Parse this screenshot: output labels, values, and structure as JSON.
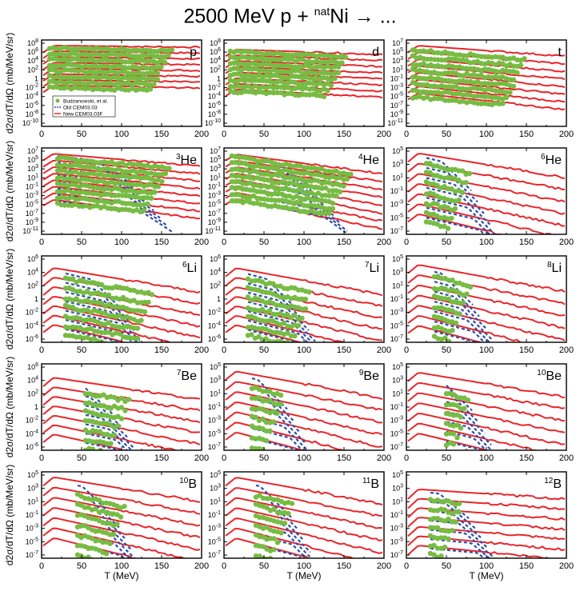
{
  "title": {
    "prefix": "2500 MeV p + ",
    "sup": "nat",
    "target": "Ni",
    "suffix": " → ..."
  },
  "colors": {
    "new_model": "#e8262b",
    "old_model": "#2f4faa",
    "data": "#77bc43",
    "axis": "#000000"
  },
  "axes": {
    "xlabel": "T (MeV)",
    "ylabel": "d2σ/dT/dΩ (mb/MeV/sr)",
    "ylabel_sup": "2",
    "xlim": [
      0,
      200
    ],
    "xticks": [
      "0",
      "50",
      "100",
      "150",
      "200"
    ],
    "ylog": true
  },
  "legend": {
    "panel": "p",
    "placement": "lower-left",
    "entries": [
      {
        "label": "Budzanowski, et al.",
        "kind": "data"
      },
      {
        "label": "Old CEM03.03",
        "kind": "old_model"
      },
      {
        "label": "New CEM03.03F",
        "kind": "new_model"
      }
    ]
  },
  "chart_data": [
    {
      "type": "line",
      "panel": "p",
      "label": "p",
      "label_sup": "",
      "ylim_exp": [
        -11,
        8
      ],
      "yticks": [
        {
          "b": "10",
          "e": "8"
        },
        {
          "b": "10",
          "e": "6"
        },
        {
          "b": "10",
          "e": "4"
        },
        {
          "b": "10",
          "e": "2"
        },
        {
          "b": "1",
          "e": ""
        },
        {
          "b": "10",
          "e": "-2"
        },
        {
          "b": "10",
          "e": "-4"
        },
        {
          "b": "10",
          "e": "-6"
        },
        {
          "b": "10",
          "e": "-8"
        },
        {
          "b": "10",
          "e": "-10"
        }
      ],
      "curves": 8,
      "new_peak": 6.8,
      "new_slope": 0.002,
      "new_spacing": 1.25,
      "old_dash": false,
      "data_x": [
        10,
        165
      ],
      "data_peak": 6.3,
      "data_slope": 0.004
    },
    {
      "type": "line",
      "panel": "d",
      "label": "d",
      "label_sup": "",
      "ylim_exp": [
        -11,
        8
      ],
      "yticks": [
        {
          "b": "10",
          "e": "8"
        },
        {
          "b": "10",
          "e": "6"
        },
        {
          "b": "10",
          "e": "4"
        },
        {
          "b": "10",
          "e": "2"
        },
        {
          "b": "1",
          "e": ""
        },
        {
          "b": "10",
          "e": "-2"
        },
        {
          "b": "10",
          "e": "-4"
        },
        {
          "b": "10",
          "e": "-6"
        },
        {
          "b": "10",
          "e": "-8"
        },
        {
          "b": "10",
          "e": "-10"
        }
      ],
      "curves": 8,
      "new_peak": 6.0,
      "new_slope": 0.006,
      "new_spacing": 1.25,
      "old_dash": false,
      "data_x": [
        8,
        155
      ],
      "data_peak": 5.5,
      "data_slope": 0.008
    },
    {
      "type": "line",
      "panel": "t",
      "label": "t",
      "label_sup": "",
      "ylim_exp": [
        -11,
        7
      ],
      "yticks": [
        {
          "b": "10",
          "e": "7"
        },
        {
          "b": "10",
          "e": "5"
        },
        {
          "b": "10",
          "e": "3"
        },
        {
          "b": "10",
          "e": "1"
        },
        {
          "b": "10",
          "e": "-1"
        },
        {
          "b": "10",
          "e": "-3"
        },
        {
          "b": "10",
          "e": "-5"
        },
        {
          "b": "10",
          "e": "-7"
        },
        {
          "b": "10",
          "e": "-9"
        },
        {
          "b": "10",
          "e": "-11"
        }
      ],
      "curves": 8,
      "new_peak": 6.0,
      "new_slope": 0.012,
      "new_spacing": 1.4,
      "old_dash": false,
      "data_x": [
        8,
        150
      ],
      "data_peak": 5.0,
      "data_slope": 0.014
    },
    {
      "type": "line",
      "panel": "3He",
      "label": "He",
      "label_sup": "3",
      "ylim_exp": [
        -11,
        7
      ],
      "yticks": [
        {
          "b": "10",
          "e": "7"
        },
        {
          "b": "10",
          "e": "5"
        },
        {
          "b": "10",
          "e": "3"
        },
        {
          "b": "10",
          "e": "1"
        },
        {
          "b": "10",
          "e": "-1"
        },
        {
          "b": "10",
          "e": "-3"
        },
        {
          "b": "10",
          "e": "-5"
        },
        {
          "b": "10",
          "e": "-7"
        },
        {
          "b": "10",
          "e": "-9"
        },
        {
          "b": "10",
          "e": "-11"
        }
      ],
      "curves": 8,
      "new_peak": 6.0,
      "new_slope": 0.014,
      "new_spacing": 1.35,
      "old_dash": true,
      "data_x": [
        20,
        160
      ],
      "data_peak": 5.2,
      "data_slope": 0.015
    },
    {
      "type": "line",
      "panel": "4He",
      "label": "He",
      "label_sup": "4",
      "ylim_exp": [
        -11,
        7
      ],
      "yticks": [
        {
          "b": "10",
          "e": "7"
        },
        {
          "b": "10",
          "e": "5"
        },
        {
          "b": "10",
          "e": "3"
        },
        {
          "b": "10",
          "e": "1"
        },
        {
          "b": "10",
          "e": "-1"
        },
        {
          "b": "10",
          "e": "-3"
        },
        {
          "b": "10",
          "e": "-5"
        },
        {
          "b": "10",
          "e": "-7"
        },
        {
          "b": "10",
          "e": "-9"
        },
        {
          "b": "10",
          "e": "-11"
        }
      ],
      "curves": 8,
      "new_peak": 6.0,
      "new_slope": 0.022,
      "new_spacing": 1.3,
      "old_dash": true,
      "data_x": [
        10,
        160
      ],
      "data_peak": 5.5,
      "data_slope": 0.025
    },
    {
      "type": "line",
      "panel": "6He",
      "label": "He",
      "label_sup": "6",
      "ylim_exp": [
        -8,
        5
      ],
      "yticks": [
        {
          "b": "10",
          "e": "5"
        },
        {
          "b": "10",
          "e": "3"
        },
        {
          "b": "10",
          "e": "1"
        },
        {
          "b": "10",
          "e": "-1"
        },
        {
          "b": "10",
          "e": "-3"
        },
        {
          "b": "10",
          "e": "-5"
        },
        {
          "b": "10",
          "e": "-7"
        }
      ],
      "curves": 7,
      "new_peak": 4.5,
      "new_slope": 0.02,
      "new_spacing": 1.5,
      "old_dash": true,
      "data_x": [
        25,
        80
      ],
      "data_peak": 3.5,
      "data_slope": 0.03
    },
    {
      "type": "line",
      "panel": "6Li",
      "label": "Li",
      "label_sup": "6",
      "ylim_exp": [
        -7,
        6
      ],
      "yticks": [
        {
          "b": "10",
          "e": "6"
        },
        {
          "b": "10",
          "e": "4"
        },
        {
          "b": "10",
          "e": "2"
        },
        {
          "b": "1",
          "e": ""
        },
        {
          "b": "10",
          "e": "-2"
        },
        {
          "b": "10",
          "e": "-4"
        },
        {
          "b": "10",
          "e": "-6"
        }
      ],
      "curves": 7,
      "new_peak": 4.5,
      "new_slope": 0.02,
      "new_spacing": 1.4,
      "old_dash": true,
      "data_x": [
        30,
        140
      ],
      "data_peak": 3.2,
      "data_slope": 0.022
    },
    {
      "type": "line",
      "panel": "7Li",
      "label": "Li",
      "label_sup": "7",
      "ylim_exp": [
        -7,
        6
      ],
      "yticks": [
        {
          "b": "10",
          "e": "6"
        },
        {
          "b": "10",
          "e": "4"
        },
        {
          "b": "10",
          "e": "2"
        },
        {
          "b": "1",
          "e": ""
        },
        {
          "b": "10",
          "e": "-2"
        },
        {
          "b": "10",
          "e": "-4"
        },
        {
          "b": "10",
          "e": "-6"
        }
      ],
      "curves": 7,
      "new_peak": 4.5,
      "new_slope": 0.022,
      "new_spacing": 1.4,
      "old_dash": true,
      "data_x": [
        30,
        110
      ],
      "data_peak": 3.2,
      "data_slope": 0.025
    },
    {
      "type": "line",
      "panel": "8Li",
      "label": "Li",
      "label_sup": "8",
      "ylim_exp": [
        -8,
        5
      ],
      "yticks": [
        {
          "b": "10",
          "e": "5"
        },
        {
          "b": "10",
          "e": "3"
        },
        {
          "b": "10",
          "e": "1"
        },
        {
          "b": "10",
          "e": "-1"
        },
        {
          "b": "10",
          "e": "-3"
        },
        {
          "b": "10",
          "e": "-5"
        },
        {
          "b": "10",
          "e": "-7"
        }
      ],
      "curves": 7,
      "new_peak": 4.0,
      "new_slope": 0.022,
      "new_spacing": 1.5,
      "old_dash": true,
      "data_x": [
        35,
        80
      ],
      "data_peak": 2.8,
      "data_slope": 0.028
    },
    {
      "type": "line",
      "panel": "7Be",
      "label": "Be",
      "label_sup": "7",
      "ylim_exp": [
        -7,
        6
      ],
      "yticks": [
        {
          "b": "10",
          "e": "6"
        },
        {
          "b": "10",
          "e": "4"
        },
        {
          "b": "10",
          "e": "2"
        },
        {
          "b": "1",
          "e": ""
        },
        {
          "b": "10",
          "e": "-2"
        },
        {
          "b": "10",
          "e": "-4"
        },
        {
          "b": "10",
          "e": "-6"
        }
      ],
      "curves": 7,
      "new_peak": 4.2,
      "new_slope": 0.018,
      "new_spacing": 1.4,
      "old_dash": true,
      "data_x": [
        55,
        110
      ],
      "data_peak": 2.8,
      "data_slope": 0.022
    },
    {
      "type": "line",
      "panel": "9Be",
      "label": "Be",
      "label_sup": "9",
      "ylim_exp": [
        -8,
        5
      ],
      "yticks": [
        {
          "b": "10",
          "e": "5"
        },
        {
          "b": "10",
          "e": "3"
        },
        {
          "b": "10",
          "e": "1"
        },
        {
          "b": "10",
          "e": "-1"
        },
        {
          "b": "10",
          "e": "-3"
        },
        {
          "b": "10",
          "e": "-5"
        },
        {
          "b": "10",
          "e": "-7"
        }
      ],
      "curves": 7,
      "new_peak": 4.2,
      "new_slope": 0.022,
      "new_spacing": 1.5,
      "old_dash": true,
      "data_x": [
        35,
        75
      ],
      "data_peak": 2.5,
      "data_slope": 0.03
    },
    {
      "type": "line",
      "panel": "10Be",
      "label": "Be",
      "label_sup": "10",
      "ylim_exp": [
        -8,
        5
      ],
      "yticks": [
        {
          "b": "10",
          "e": "5"
        },
        {
          "b": "10",
          "e": "3"
        },
        {
          "b": "10",
          "e": "1"
        },
        {
          "b": "10",
          "e": "-1"
        },
        {
          "b": "10",
          "e": "-3"
        },
        {
          "b": "10",
          "e": "-5"
        },
        {
          "b": "10",
          "e": "-7"
        }
      ],
      "curves": 7,
      "new_peak": 4.0,
      "new_slope": 0.02,
      "new_spacing": 1.5,
      "old_dash": true,
      "data_x": [
        50,
        80
      ],
      "data_peak": 2.0,
      "data_slope": 0.03
    },
    {
      "type": "line",
      "panel": "10B",
      "label": "B",
      "label_sup": "10",
      "ylim_exp": [
        -8,
        5
      ],
      "yticks": [
        {
          "b": "10",
          "e": "5"
        },
        {
          "b": "10",
          "e": "3"
        },
        {
          "b": "10",
          "e": "1"
        },
        {
          "b": "10",
          "e": "-1"
        },
        {
          "b": "10",
          "e": "-3"
        },
        {
          "b": "10",
          "e": "-5"
        },
        {
          "b": "10",
          "e": "-7"
        }
      ],
      "curves": 7,
      "new_peak": 4.5,
      "new_slope": 0.02,
      "new_spacing": 1.5,
      "old_dash": true,
      "data_x": [
        45,
        105
      ],
      "data_peak": 2.8,
      "data_slope": 0.03
    },
    {
      "type": "line",
      "panel": "11B",
      "label": "B",
      "label_sup": "11",
      "ylim_exp": [
        -8,
        5
      ],
      "yticks": [
        {
          "b": "10",
          "e": "5"
        },
        {
          "b": "10",
          "e": "3"
        },
        {
          "b": "10",
          "e": "1"
        },
        {
          "b": "10",
          "e": "-1"
        },
        {
          "b": "10",
          "e": "-3"
        },
        {
          "b": "10",
          "e": "-5"
        },
        {
          "b": "10",
          "e": "-7"
        }
      ],
      "curves": 7,
      "new_peak": 4.5,
      "new_slope": 0.022,
      "new_spacing": 1.5,
      "old_dash": true,
      "data_x": [
        40,
        85
      ],
      "data_peak": 2.6,
      "data_slope": 0.03
    },
    {
      "type": "line",
      "panel": "12B",
      "label": "B",
      "label_sup": "12",
      "ylim_exp": [
        -8,
        5
      ],
      "yticks": [
        {
          "b": "10",
          "e": "5"
        },
        {
          "b": "10",
          "e": "3"
        },
        {
          "b": "10",
          "e": "1"
        },
        {
          "b": "10",
          "e": "-1"
        },
        {
          "b": "10",
          "e": "-3"
        },
        {
          "b": "10",
          "e": "-5"
        },
        {
          "b": "10",
          "e": "-7"
        }
      ],
      "curves": 7,
      "new_peak": 2.5,
      "new_slope": 0.008,
      "new_spacing": 1.4,
      "old_dash": true,
      "data_x": [
        30,
        70
      ],
      "data_peak": 1.5,
      "data_slope": 0.02
    }
  ]
}
